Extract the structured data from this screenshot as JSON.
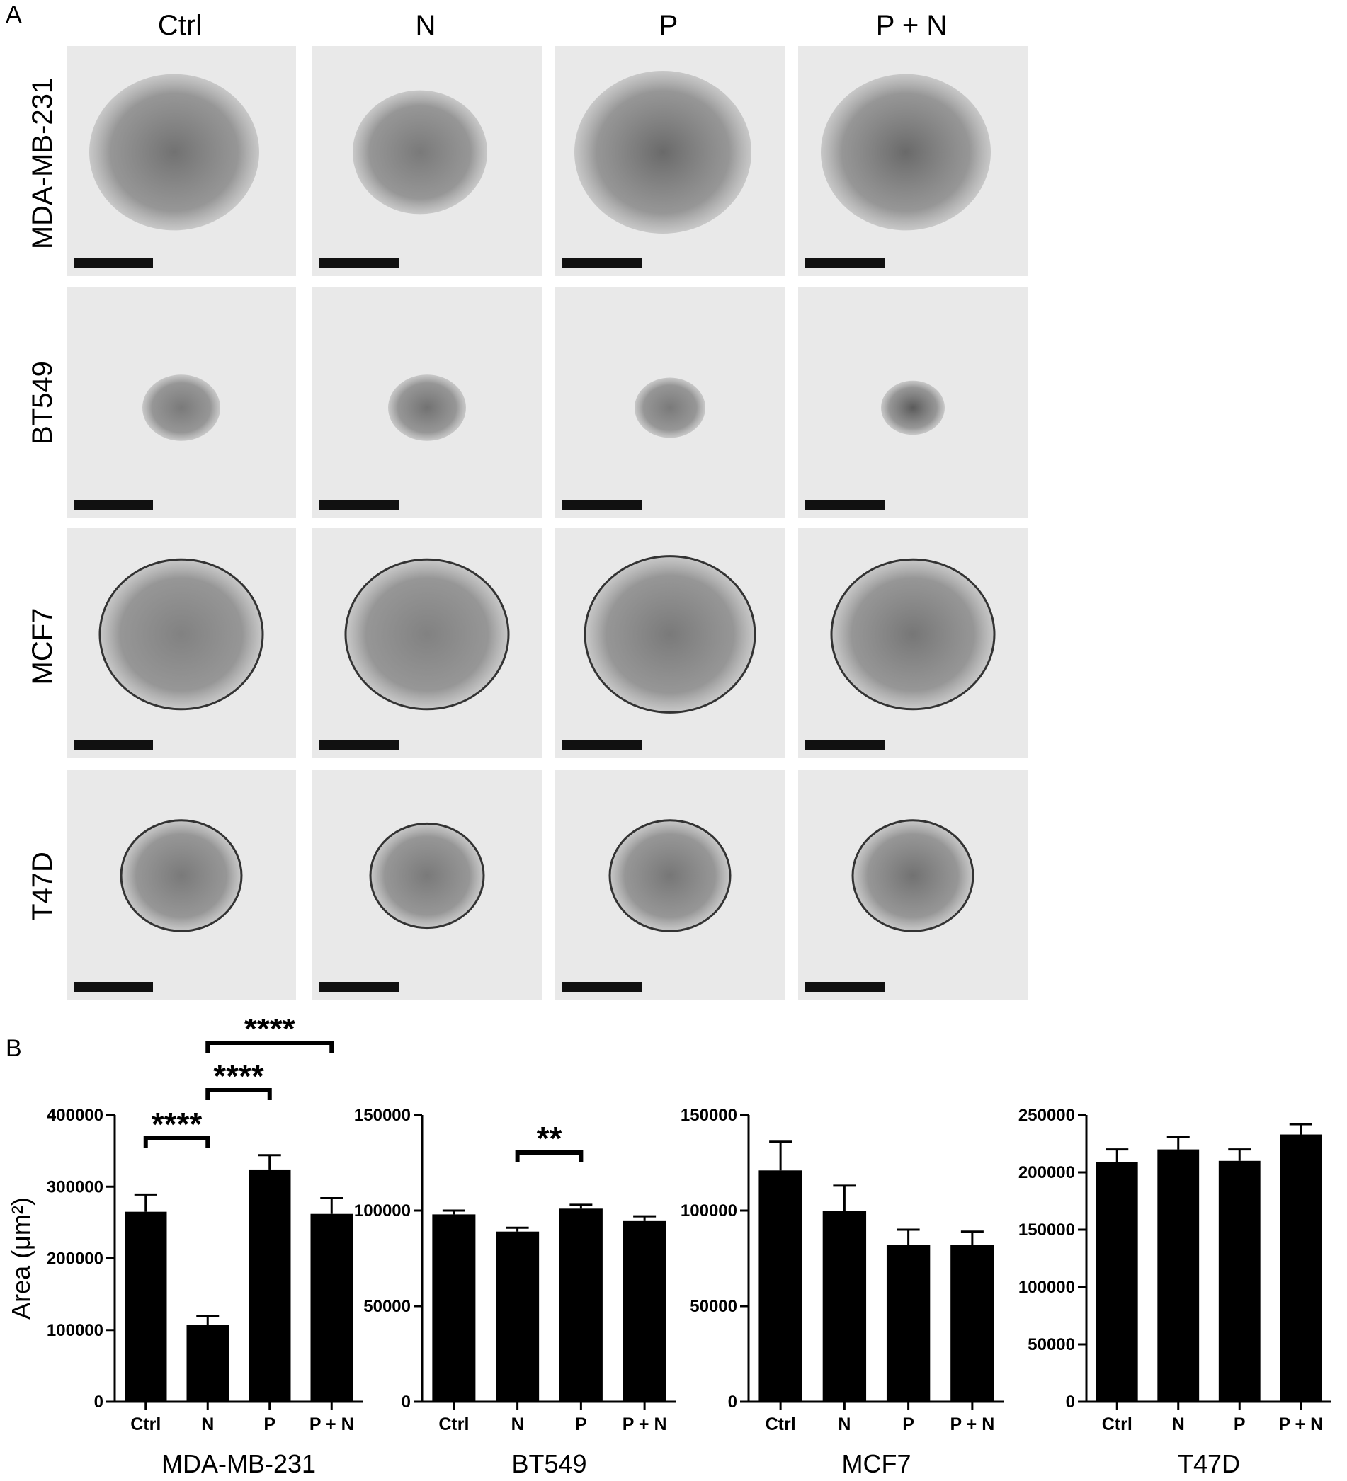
{
  "panel_a": {
    "letter": "A",
    "columns": [
      "Ctrl",
      "N",
      "P",
      "P + N"
    ],
    "rows": [
      "MDA-MB-231",
      "BT549",
      "MCF7",
      "T47D"
    ]
  },
  "panel_b": {
    "letter": "B"
  },
  "colors": {
    "bar": "#000000",
    "background": "#ffffff",
    "image_bg": "#e9e9e9",
    "spheroid": "#4a4a4a"
  },
  "chart_data": [
    {
      "type": "bar",
      "categories": [
        "Ctrl",
        "N",
        "P",
        "P + N"
      ],
      "values": [
        265000,
        107000,
        324000,
        262000
      ],
      "errors": [
        24000,
        13000,
        20000,
        22000
      ],
      "xlabel": "MDA-MB-231",
      "ylabel": "Area (μm²)",
      "ylim": [
        0,
        400000
      ],
      "yticks": [
        0,
        100000,
        200000,
        300000,
        400000
      ],
      "significance": [
        {
          "from": "Ctrl",
          "to": "N",
          "label": "****"
        },
        {
          "from": "N",
          "to": "P",
          "label": "****"
        },
        {
          "from": "N",
          "to": "P + N",
          "label": "****"
        }
      ]
    },
    {
      "type": "bar",
      "categories": [
        "Ctrl",
        "N",
        "P",
        "P + N"
      ],
      "values": [
        98000,
        89000,
        101000,
        94500
      ],
      "errors": [
        2000,
        2000,
        2000,
        2500
      ],
      "xlabel": "BT549",
      "ylabel": "",
      "ylim": [
        0,
        150000
      ],
      "yticks": [
        0,
        50000,
        100000,
        150000
      ],
      "significance": [
        {
          "from": "N",
          "to": "P",
          "label": "**"
        }
      ]
    },
    {
      "type": "bar",
      "categories": [
        "Ctrl",
        "N",
        "P",
        "P + N"
      ],
      "values": [
        121000,
        100000,
        82000,
        82000
      ],
      "errors": [
        15000,
        13000,
        8000,
        7000
      ],
      "xlabel": "MCF7",
      "ylabel": "",
      "ylim": [
        0,
        150000
      ],
      "yticks": [
        0,
        50000,
        100000,
        150000
      ],
      "significance": []
    },
    {
      "type": "bar",
      "categories": [
        "Ctrl",
        "N",
        "P",
        "P + N"
      ],
      "values": [
        209000,
        220000,
        210000,
        233000
      ],
      "errors": [
        11000,
        11000,
        10000,
        9000
      ],
      "xlabel": "T47D",
      "ylabel": "",
      "ylim": [
        0,
        250000
      ],
      "yticks": [
        0,
        50000,
        100000,
        150000,
        200000,
        250000
      ],
      "significance": []
    }
  ]
}
